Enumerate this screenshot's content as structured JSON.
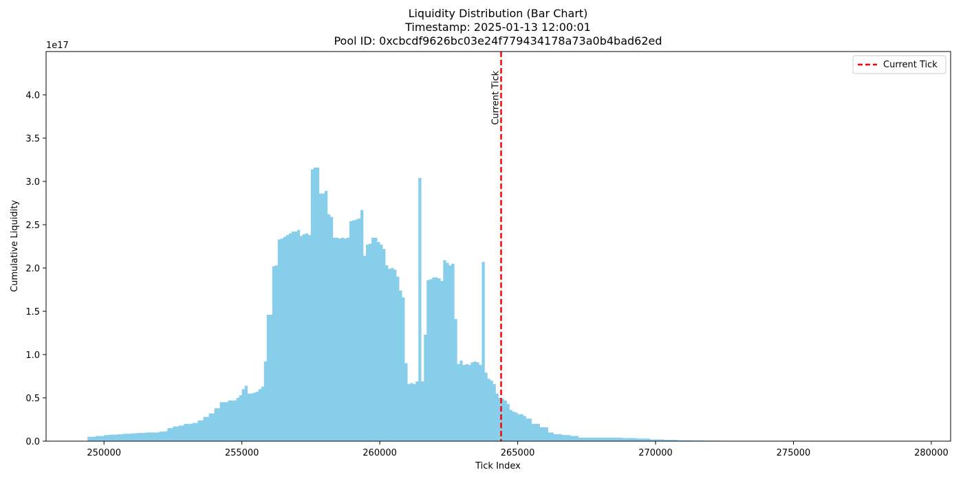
{
  "chart_data": {
    "type": "bar",
    "title_lines": [
      "Liquidity Distribution (Bar Chart)",
      "Timestamp: 2025-01-13 12:00:01",
      "Pool ID: 0xcbcdf9626bc03e24f779434178a73a0b4bad62ed"
    ],
    "xlabel": "Tick Index",
    "ylabel": "Cumulative Liquidity",
    "y_multiplier": "1e17",
    "xlim": [
      247900,
      280700
    ],
    "ylim": [
      0,
      4.5
    ],
    "x_ticks": [
      250000,
      255000,
      260000,
      265000,
      270000,
      275000,
      280000
    ],
    "x_tick_labels": [
      "250000",
      "255000",
      "260000",
      "265000",
      "270000",
      "275000",
      "280000"
    ],
    "y_ticks": [
      0,
      0.5,
      1.0,
      1.5,
      2.0,
      2.5,
      3.0,
      3.5,
      4.0
    ],
    "y_tick_labels": [
      "0.0",
      "0.5",
      "1.0",
      "1.5",
      "2.0",
      "2.5",
      "3.0",
      "3.5",
      "4.0"
    ],
    "bar_width": 100,
    "bar_color": "#87ceeb",
    "points": [
      [
        249400,
        0.05
      ],
      [
        249700,
        0.06
      ],
      [
        250000,
        0.07
      ],
      [
        250200,
        0.075
      ],
      [
        250500,
        0.08
      ],
      [
        250700,
        0.085
      ],
      [
        251000,
        0.09
      ],
      [
        251200,
        0.095
      ],
      [
        251500,
        0.1
      ],
      [
        251700,
        0.1
      ],
      [
        252000,
        0.11
      ],
      [
        252200,
        0.115
      ],
      [
        252300,
        0.15
      ],
      [
        252500,
        0.17
      ],
      [
        252700,
        0.18
      ],
      [
        252900,
        0.2
      ],
      [
        253200,
        0.21
      ],
      [
        253400,
        0.24
      ],
      [
        253600,
        0.28
      ],
      [
        253800,
        0.32
      ],
      [
        254000,
        0.38
      ],
      [
        254200,
        0.45
      ],
      [
        254500,
        0.47
      ],
      [
        254800,
        0.5
      ],
      [
        254900,
        0.53
      ],
      [
        255000,
        0.6
      ],
      [
        255100,
        0.64
      ],
      [
        255200,
        0.55
      ],
      [
        255400,
        0.56
      ],
      [
        255500,
        0.57
      ],
      [
        255600,
        0.6
      ],
      [
        255700,
        0.63
      ],
      [
        255800,
        0.92
      ],
      [
        255900,
        1.46
      ],
      [
        256000,
        1.46
      ],
      [
        256100,
        2.02
      ],
      [
        256200,
        2.03
      ],
      [
        256300,
        2.33
      ],
      [
        256400,
        2.34
      ],
      [
        256500,
        2.36
      ],
      [
        256600,
        2.38
      ],
      [
        256700,
        2.4
      ],
      [
        256800,
        2.42
      ],
      [
        256900,
        2.42
      ],
      [
        257000,
        2.44
      ],
      [
        257100,
        2.37
      ],
      [
        257200,
        2.39
      ],
      [
        257300,
        2.4
      ],
      [
        257400,
        2.38
      ],
      [
        257500,
        3.14
      ],
      [
        257600,
        3.16
      ],
      [
        257700,
        3.16
      ],
      [
        257800,
        2.86
      ],
      [
        257900,
        2.86
      ],
      [
        258000,
        2.89
      ],
      [
        258100,
        2.62
      ],
      [
        258200,
        2.59
      ],
      [
        258300,
        2.35
      ],
      [
        258400,
        2.35
      ],
      [
        258500,
        2.34
      ],
      [
        258600,
        2.35
      ],
      [
        258700,
        2.34
      ],
      [
        258800,
        2.35
      ],
      [
        258900,
        2.54
      ],
      [
        259000,
        2.55
      ],
      [
        259100,
        2.56
      ],
      [
        259200,
        2.57
      ],
      [
        259300,
        2.67
      ],
      [
        259400,
        2.14
      ],
      [
        259500,
        2.27
      ],
      [
        259600,
        2.28
      ],
      [
        259700,
        2.35
      ],
      [
        259800,
        2.35
      ],
      [
        259900,
        2.3
      ],
      [
        260000,
        2.27
      ],
      [
        260100,
        2.22
      ],
      [
        260200,
        2.03
      ],
      [
        260300,
        1.99
      ],
      [
        260400,
        2.0
      ],
      [
        260500,
        1.98
      ],
      [
        260600,
        1.9
      ],
      [
        260700,
        1.74
      ],
      [
        260800,
        1.66
      ],
      [
        260900,
        0.9
      ],
      [
        261000,
        0.66
      ],
      [
        261100,
        0.67
      ],
      [
        261200,
        0.66
      ],
      [
        261300,
        0.69
      ],
      [
        261400,
        3.04
      ],
      [
        261500,
        0.69
      ],
      [
        261600,
        1.23
      ],
      [
        261700,
        1.86
      ],
      [
        261800,
        1.87
      ],
      [
        261900,
        1.89
      ],
      [
        262000,
        1.89
      ],
      [
        262100,
        1.88
      ],
      [
        262200,
        1.85
      ],
      [
        262300,
        2.09
      ],
      [
        262400,
        2.06
      ],
      [
        262500,
        2.03
      ],
      [
        262600,
        2.05
      ],
      [
        262700,
        1.41
      ],
      [
        262800,
        0.89
      ],
      [
        262900,
        0.93
      ],
      [
        263000,
        0.88
      ],
      [
        263100,
        0.89
      ],
      [
        263200,
        0.88
      ],
      [
        263300,
        0.91
      ],
      [
        263400,
        0.92
      ],
      [
        263500,
        0.91
      ],
      [
        263600,
        0.88
      ],
      [
        263700,
        2.07
      ],
      [
        263800,
        0.79
      ],
      [
        263900,
        0.72
      ],
      [
        264000,
        0.7
      ],
      [
        264100,
        0.66
      ],
      [
        264200,
        0.55
      ],
      [
        264300,
        0.5
      ],
      [
        264400,
        0.49
      ],
      [
        264500,
        0.47
      ],
      [
        264600,
        0.43
      ],
      [
        264700,
        0.36
      ],
      [
        264800,
        0.34
      ],
      [
        264900,
        0.33
      ],
      [
        265000,
        0.31
      ],
      [
        265200,
        0.29
      ],
      [
        265300,
        0.26
      ],
      [
        265500,
        0.2
      ],
      [
        265800,
        0.16
      ],
      [
        266100,
        0.1
      ],
      [
        266300,
        0.08
      ],
      [
        266600,
        0.07
      ],
      [
        266900,
        0.06
      ],
      [
        267200,
        0.04
      ],
      [
        267800,
        0.04
      ],
      [
        268300,
        0.04
      ],
      [
        268800,
        0.035
      ],
      [
        269300,
        0.03
      ],
      [
        269800,
        0.02
      ],
      [
        270300,
        0.015
      ],
      [
        270800,
        0.01
      ],
      [
        271300,
        0.008
      ],
      [
        271800,
        0.006
      ],
      [
        272300,
        0.005
      ],
      [
        272800,
        0.004
      ],
      [
        273300,
        0.004
      ],
      [
        273800,
        0.003
      ],
      [
        274300,
        0.003
      ],
      [
        274800,
        0.003
      ],
      [
        275300,
        0.003
      ],
      [
        275800,
        0.002
      ],
      [
        276300,
        0.002
      ],
      [
        276800,
        0.002
      ],
      [
        277300,
        0.002
      ],
      [
        277800,
        0.002
      ],
      [
        278300,
        0.002
      ],
      [
        278800,
        0.002
      ],
      [
        279300,
        0.001
      ]
    ],
    "current_tick": 264400,
    "current_tick_color": "#ff0000",
    "current_tick_label": "Current Tick",
    "legend": {
      "entry": "Current Tick",
      "placement": "top-right"
    }
  }
}
